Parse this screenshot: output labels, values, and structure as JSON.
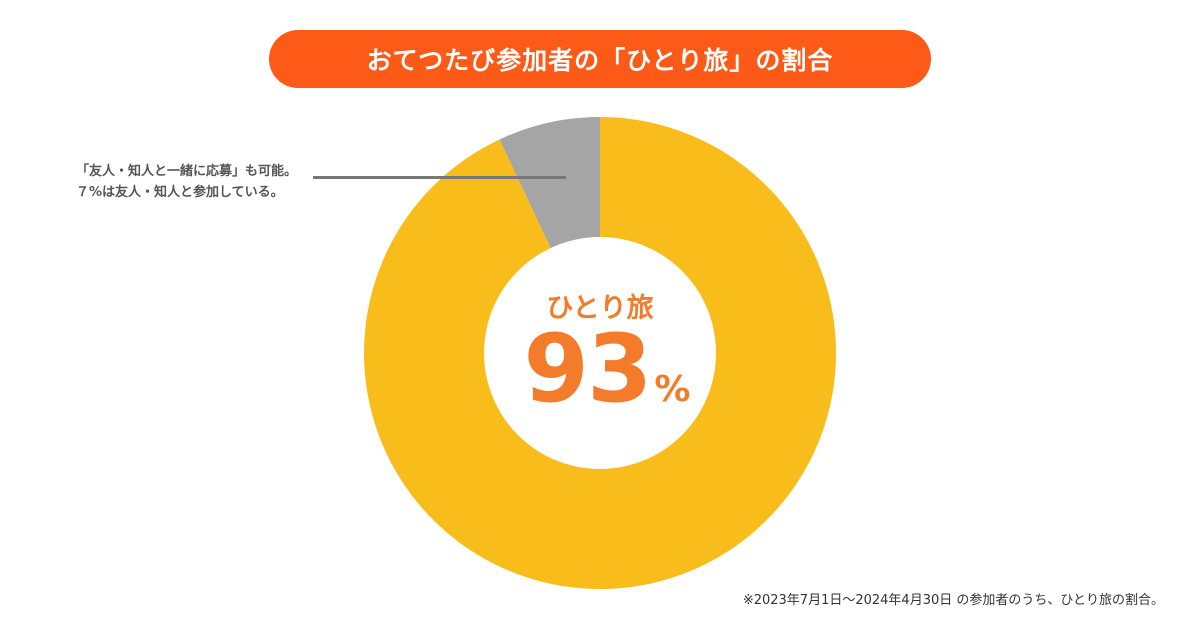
{
  "header": {
    "title": "おてつたび参加者の「ひとり旅」の割合"
  },
  "chart_data": {
    "type": "pie",
    "donut": true,
    "categories": [
      "ひとり旅",
      "友人・知人と参加"
    ],
    "values": [
      93,
      7
    ],
    "unit": "%",
    "colors": [
      "#f8bd1a",
      "#a5a5a5"
    ],
    "center_label": {
      "category": "ひとり旅",
      "value": "93",
      "unit": "%"
    },
    "annotation": {
      "line1": "「友人・知人と一緒に応募」も可能。",
      "line2": "７%は友人・知人と参加している。"
    }
  },
  "footnote": "※2023年7月1日〜2024年4月30日 の参加者のうち、ひとり旅の割合。",
  "colors": {
    "accent": "#fd5a17",
    "center_text": "#f47b2a",
    "main_slice": "#f8bd1a",
    "minor_slice": "#a5a5a5"
  }
}
